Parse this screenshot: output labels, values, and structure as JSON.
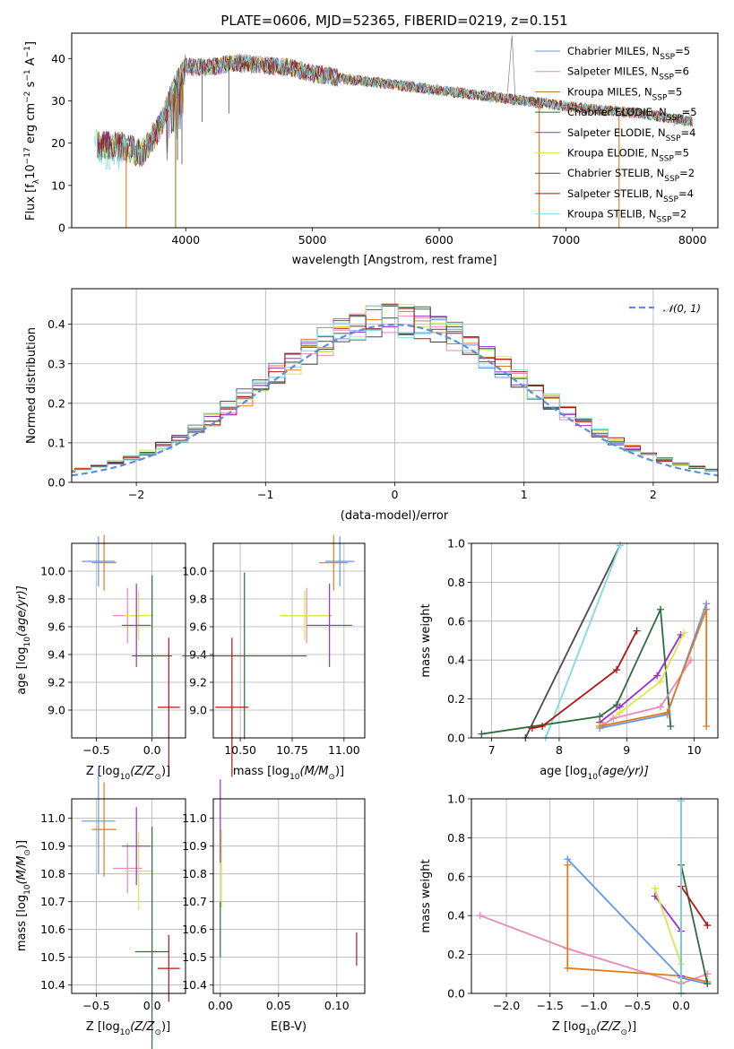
{
  "colors": {
    "c1": "#6495ED",
    "c2": "#E68AB8",
    "c3": "#E07B1F",
    "c4": "#2E6B3E",
    "c5": "#9B30C8",
    "c6": "#D7E84A",
    "c7": "#4A4A4A",
    "c8": "#B01515",
    "c9": "#7FD9E0"
  },
  "chart_data": [
    {
      "type": "line",
      "panel": "spectrum",
      "title": "PLATE=0606, MJD=52365, FIBERID=0219, z=0.151",
      "xlabel": "wavelength [Angstrom, rest frame]",
      "ylabel_main": "Flux [f",
      "ylabel_sub": "λ",
      "ylabel_mid": "10",
      "ylabel_sup": "−17",
      "ylabel_units": " erg cm",
      "ylabel_sup2": "−2",
      "ylabel_s": " s",
      "ylabel_sup3": "−1",
      "ylabel_a": " A",
      "ylabel_sup4": "−1",
      "ylabel_end": "]",
      "xlim": [
        3100,
        8200
      ],
      "ylim": [
        0,
        46
      ],
      "xticks": [
        "4000",
        "5000",
        "6000",
        "7000",
        "8000"
      ],
      "yticks": [
        "0",
        "10",
        "20",
        "30",
        "40"
      ],
      "legend_position": "top-right",
      "legend": [
        {
          "base": "Chabrier MILES, N",
          "sub": "SSP",
          "rest": "=5",
          "color": "#6495ED"
        },
        {
          "base": "Salpeter MILES, N",
          "sub": "SSP",
          "rest": "=6",
          "color": "#E68AB8"
        },
        {
          "base": "Kroupa MILES, N",
          "sub": "SSP",
          "rest": "=5",
          "color": "#A07A1E"
        },
        {
          "base": "Chabrier ELODIE, N",
          "sub": "SSP",
          "rest": "=5",
          "color": "#2E6B3E"
        },
        {
          "base": "Salpeter ELODIE, N",
          "sub": "SSP",
          "rest": "=4",
          "color": "#9B30C8"
        },
        {
          "base": "Kroupa ELODIE, N",
          "sub": "SSP",
          "rest": "=5",
          "color": "#D7E84A"
        },
        {
          "base": "Chabrier STELIB, N",
          "sub": "SSP",
          "rest": "=2",
          "color": "#4A4A4A"
        },
        {
          "base": "Salpeter STELIB, N",
          "sub": "SSP",
          "rest": "=4",
          "color": "#B01515"
        },
        {
          "base": "Kroupa STELIB, N",
          "sub": "SSP",
          "rest": "=2",
          "color": "#7FD9E0"
        }
      ],
      "continuum": [
        [
          3300,
          19.5
        ],
        [
          3500,
          19.2
        ],
        [
          3650,
          17.5
        ],
        [
          3800,
          24
        ],
        [
          3900,
          32
        ],
        [
          4000,
          38
        ],
        [
          4200,
          38
        ],
        [
          4400,
          39
        ],
        [
          4600,
          38.5
        ],
        [
          4800,
          38
        ],
        [
          5000,
          36.5
        ],
        [
          5300,
          35
        ],
        [
          5600,
          34
        ],
        [
          6000,
          32.5
        ],
        [
          6400,
          31
        ],
        [
          6800,
          29.5
        ],
        [
          7200,
          28
        ],
        [
          7600,
          27
        ],
        [
          8000,
          25
        ],
        [
          8000,
          24
        ]
      ],
      "spikes": [
        {
          "x": 3530,
          "color": "#E07B1F"
        },
        {
          "x": 3920,
          "color": "#A07A1E"
        },
        {
          "x": 6790,
          "color": "#D7E84A"
        },
        {
          "x": 6790,
          "color": "#E07B1F"
        },
        {
          "x": 7420,
          "color": "#E07B1F"
        }
      ]
    },
    {
      "type": "histogram",
      "panel": "residuals",
      "xlabel": "(data-model)/error",
      "ylabel": "Normed distribution",
      "xlim": [
        -2.5,
        2.5
      ],
      "ylim": [
        0,
        0.49
      ],
      "xticks": [
        "−2",
        "−1",
        "0",
        "1",
        "2"
      ],
      "yticks": [
        "0.0",
        "0.1",
        "0.2",
        "0.3",
        "0.4"
      ],
      "legend_position": "top-right",
      "legend_label": "𝒩(0, 1)",
      "legend_color": "#5B8FD8"
    },
    {
      "type": "scatter",
      "panel": "age-vs-Z",
      "xlabel": "Z [log",
      "xlabel_sub": "10",
      "xlabel_rest": "(Z/Z",
      "xlabel_sun": "⊙",
      "xlabel_end": ")]",
      "ylabel": "age  [log",
      "ylabel_sub": "10",
      "ylabel_rest": "(age/yr)]",
      "xlim": [
        -0.72,
        0.3
      ],
      "ylim": [
        8.8,
        10.2
      ],
      "xticks": [
        "−0.5",
        "0.0"
      ],
      "yticks": [
        "9.0",
        "9.2",
        "9.4",
        "9.6",
        "9.8",
        "10.0"
      ],
      "points": [
        {
          "x": -0.48,
          "y": 10.07,
          "xerr": 0.15,
          "yerr": 0.18,
          "color": "#6495ED"
        },
        {
          "x": -0.43,
          "y": 10.06,
          "xerr": 0.11,
          "yerr": 0.2,
          "color": "#E07B1F"
        },
        {
          "x": -0.22,
          "y": 9.68,
          "xerr": 0.13,
          "yerr": 0.2,
          "color": "#E68AB8"
        },
        {
          "x": -0.12,
          "y": 9.68,
          "xerr": 0.13,
          "yerr": 0.18,
          "color": "#D7E84A"
        },
        {
          "x": -0.14,
          "y": 9.61,
          "xerr": 0.13,
          "yerr": 0.3,
          "color": "#9B30C8"
        },
        {
          "x": 0.0,
          "y": 9.39,
          "xerr": 0.18,
          "yerr": 0.58,
          "color": "#2E6B3E"
        },
        {
          "x": 0.15,
          "y": 9.02,
          "xerr": 0.1,
          "yerr": 0.5,
          "color": "#B01515"
        }
      ]
    },
    {
      "type": "scatter",
      "panel": "age-vs-mass",
      "xlabel": "mass [log",
      "xlabel_sub": "10",
      "xlabel_rest": "(M/M",
      "xlabel_sun": "⊙",
      "xlabel_end": ")]",
      "xlim": [
        10.37,
        11.1
      ],
      "ylim": [
        8.8,
        10.2
      ],
      "xticks": [
        "10.50",
        "10.75",
        "11.00"
      ],
      "yticks": [
        "9.0",
        "9.2",
        "9.4",
        "9.6",
        "9.8",
        "10.0"
      ],
      "points": [
        {
          "x": 10.98,
          "y": 10.07,
          "xerr": 0.07,
          "yerr": 0.18,
          "color": "#6495ED"
        },
        {
          "x": 10.95,
          "y": 10.06,
          "xerr": 0.07,
          "yerr": 0.2,
          "color": "#E07B1F"
        },
        {
          "x": 10.82,
          "y": 9.68,
          "xerr": 0.12,
          "yerr": 0.2,
          "color": "#E68AB8"
        },
        {
          "x": 10.81,
          "y": 9.68,
          "xerr": 0.12,
          "yerr": 0.18,
          "color": "#D7E84A"
        },
        {
          "x": 10.93,
          "y": 9.61,
          "xerr": 0.11,
          "yerr": 0.3,
          "color": "#9B30C8"
        },
        {
          "x": 10.52,
          "y": 9.39,
          "xerr": 0.3,
          "yerr": 0.6,
          "color": "#2E6B3E"
        },
        {
          "x": 10.46,
          "y": 9.02,
          "xerr": 0.08,
          "yerr": 0.5,
          "color": "#B01515"
        }
      ]
    },
    {
      "type": "line",
      "panel": "weight-vs-age",
      "xlabel": "age  [log",
      "xlabel_sub": "10",
      "xlabel_rest": "(age/yr)]",
      "ylabel": "mass weight",
      "xlim": [
        6.7,
        10.35
      ],
      "ylim": [
        0,
        1
      ],
      "xticks": [
        "7",
        "8",
        "9",
        "10"
      ],
      "yticks": [
        "0.0",
        "0.2",
        "0.4",
        "0.6",
        "0.8",
        "1.0"
      ],
      "series": [
        {
          "color": "#4A4A4A",
          "points": [
            [
              7.5,
              0.0
            ],
            [
              8.9,
              0.99
            ]
          ]
        },
        {
          "color": "#7FD9E0",
          "points": [
            [
              7.8,
              0.0
            ],
            [
              8.9,
              0.99
            ]
          ]
        },
        {
          "color": "#2E6B3E",
          "points": [
            [
              6.85,
              0.02
            ],
            [
              8.6,
              0.11
            ],
            [
              8.85,
              0.17
            ],
            [
              9.5,
              0.66
            ],
            [
              9.65,
              0.06
            ]
          ]
        },
        {
          "color": "#B01515",
          "points": [
            [
              7.6,
              0.05
            ],
            [
              7.75,
              0.06
            ],
            [
              8.85,
              0.35
            ],
            [
              9.15,
              0.55
            ]
          ]
        },
        {
          "color": "#9B30C8",
          "points": [
            [
              8.6,
              0.08
            ],
            [
              8.9,
              0.16
            ],
            [
              9.45,
              0.32
            ],
            [
              9.8,
              0.53
            ]
          ]
        },
        {
          "color": "#D7E84A",
          "points": [
            [
              8.65,
              0.06
            ],
            [
              8.9,
              0.13
            ],
            [
              9.5,
              0.29
            ],
            [
              9.85,
              0.54
            ]
          ]
        },
        {
          "color": "#E68AB8",
          "points": [
            [
              8.65,
              0.07
            ],
            [
              8.8,
              0.1
            ],
            [
              9.5,
              0.16
            ],
            [
              9.95,
              0.4
            ]
          ]
        },
        {
          "color": "#6495ED",
          "points": [
            [
              8.6,
              0.05
            ],
            [
              9.6,
              0.12
            ],
            [
              10.18,
              0.69
            ]
          ]
        },
        {
          "color": "#E07B1F",
          "points": [
            [
              8.6,
              0.06
            ],
            [
              9.6,
              0.13
            ],
            [
              10.18,
              0.66
            ],
            [
              10.18,
              0.06
            ]
          ]
        }
      ]
    },
    {
      "type": "scatter",
      "panel": "mass-vs-Z",
      "xlabel": "Z [log",
      "xlabel_sub": "10",
      "xlabel_rest": "(Z/Z",
      "xlabel_sun": "⊙",
      "xlabel_end": ")]",
      "ylabel": "mass [log",
      "ylabel_sub": "10",
      "ylabel_rest": "(M/M",
      "ylabel_sun": "⊙",
      "ylabel_end": ")]",
      "xlim": [
        -0.72,
        0.3
      ],
      "ylim": [
        10.37,
        11.07
      ],
      "xticks": [
        "−0.5",
        "0.0"
      ],
      "yticks": [
        "10.4",
        "10.5",
        "10.6",
        "10.7",
        "10.8",
        "10.9",
        "11.0"
      ],
      "points": [
        {
          "x": -0.48,
          "y": 10.99,
          "xerr": 0.15,
          "yerr": 0.19,
          "color": "#6495ED"
        },
        {
          "x": -0.43,
          "y": 10.96,
          "xerr": 0.11,
          "yerr": 0.17,
          "color": "#E07B1F"
        },
        {
          "x": -0.22,
          "y": 10.82,
          "xerr": 0.13,
          "yerr": 0.09,
          "color": "#E68AB8"
        },
        {
          "x": -0.12,
          "y": 10.81,
          "xerr": 0.13,
          "yerr": 0.14,
          "color": "#D7E84A"
        },
        {
          "x": -0.14,
          "y": 10.9,
          "xerr": 0.13,
          "yerr": 0.14,
          "color": "#9B30C8"
        },
        {
          "x": 0.0,
          "y": 10.52,
          "xerr": 0.15,
          "yerr": 0.45,
          "color": "#2E6B3E"
        },
        {
          "x": 0.15,
          "y": 10.46,
          "xerr": 0.1,
          "yerr": 0.12,
          "color": "#B01515"
        }
      ]
    },
    {
      "type": "scatter",
      "panel": "mass-vs-ebv",
      "xlabel": "E(B-V)",
      "xlim": [
        -0.006,
        0.124
      ],
      "ylim": [
        10.37,
        11.07
      ],
      "xticks": [
        "0.00",
        "0.05",
        "0.10"
      ],
      "yticks": [
        "10.4",
        "10.5",
        "10.6",
        "10.7",
        "10.8",
        "10.9",
        "11.0"
      ],
      "points": [
        {
          "x": 0.0,
          "y": 10.99,
          "yerr": 0.15,
          "color": "#9B30C8"
        },
        {
          "x": 0.001,
          "y": 10.82,
          "yerr": 0.14,
          "color": "#D7E84A"
        },
        {
          "x": 0.0,
          "y": 10.6,
          "yerr": 0.1,
          "color": "#2E6B3E"
        },
        {
          "x": 0.117,
          "y": 10.53,
          "yerr": 0.06,
          "color": "#B01515"
        }
      ]
    },
    {
      "type": "line",
      "panel": "weight-vs-Z",
      "xlabel": "Z [log",
      "xlabel_sub": "10",
      "xlabel_rest": "(Z/Z",
      "xlabel_sun": "⊙",
      "xlabel_end": ")]",
      "ylabel": "mass weight",
      "xlim": [
        -2.4,
        0.42
      ],
      "ylim": [
        0,
        1
      ],
      "xticks": [
        "−2.0",
        "−1.5",
        "−1.0",
        "−0.5",
        "0.0"
      ],
      "yticks": [
        "0.0",
        "0.2",
        "0.4",
        "0.6",
        "0.8",
        "1.0"
      ],
      "series": [
        {
          "color": "#E68AB8",
          "points": [
            [
              -2.3,
              0.4
            ],
            [
              -1.3,
              0.23
            ],
            [
              0.0,
              0.05
            ],
            [
              0.3,
              0.1
            ]
          ]
        },
        {
          "color": "#6495ED",
          "points": [
            [
              -1.3,
              0.69
            ],
            [
              0.0,
              0.08
            ],
            [
              0.3,
              0.05
            ]
          ]
        },
        {
          "color": "#E07B1F",
          "points": [
            [
              -1.3,
              0.66
            ],
            [
              -1.3,
              0.13
            ],
            [
              0.0,
              0.09
            ],
            [
              0.3,
              0.06
            ]
          ]
        },
        {
          "color": "#9B30C8",
          "points": [
            [
              -0.3,
              0.5
            ],
            [
              0.0,
              0.32
            ],
            [
              0.0,
              0.09
            ]
          ]
        },
        {
          "color": "#D7E84A",
          "points": [
            [
              -0.3,
              0.54
            ],
            [
              0.0,
              0.15
            ],
            [
              0.0,
              0.06
            ]
          ]
        },
        {
          "color": "#2E6B3E",
          "points": [
            [
              0.0,
              0.66
            ],
            [
              0.3,
              0.05
            ]
          ]
        },
        {
          "color": "#B01515",
          "points": [
            [
              0.0,
              0.55
            ],
            [
              0.3,
              0.35
            ]
          ]
        },
        {
          "color": "#4A4A4A",
          "points": [
            [
              0.0,
              0.99
            ],
            [
              0.0,
              0.0
            ]
          ]
        },
        {
          "color": "#7FD9E0",
          "points": [
            [
              0.0,
              0.99
            ],
            [
              0.0,
              0.0
            ]
          ]
        }
      ]
    }
  ]
}
